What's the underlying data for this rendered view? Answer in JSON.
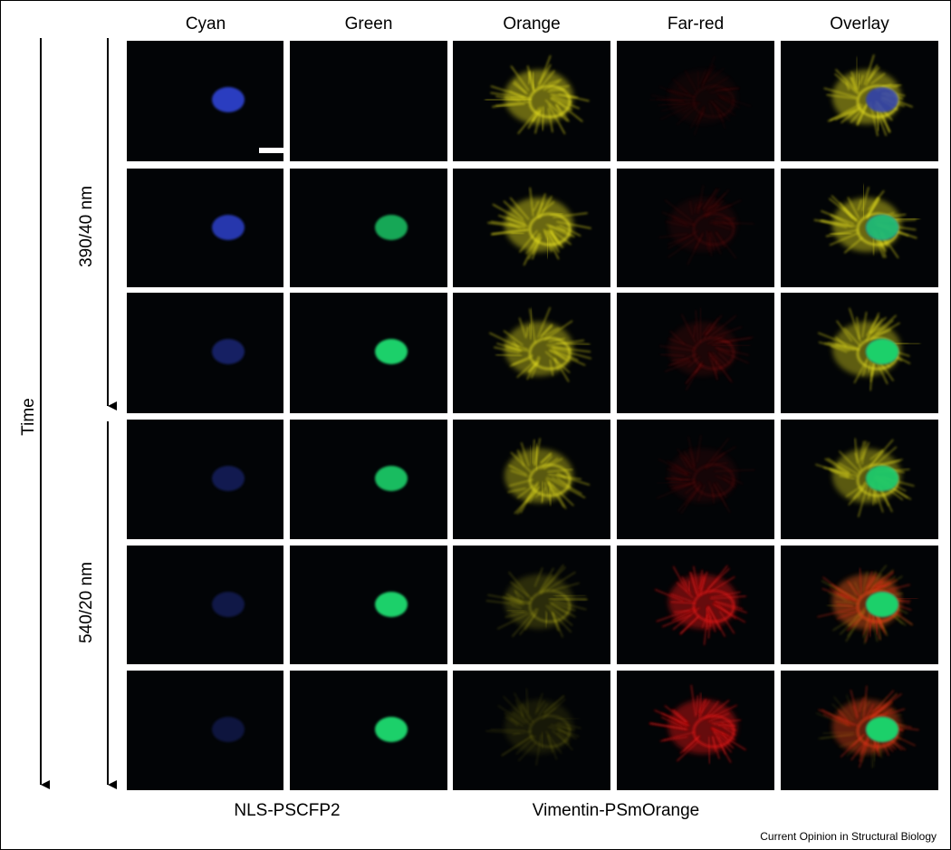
{
  "columns": [
    "Cyan",
    "Green",
    "Orange",
    "Far-red",
    "Overlay"
  ],
  "arrows": {
    "time": "Time",
    "first": "390/40 nm",
    "second": "540/20 nm"
  },
  "bottom_labels": [
    "NLS-PSCFP2",
    "Vimentin-PSmOrange"
  ],
  "credit": "Current Opinion in Structural Biology"
}
